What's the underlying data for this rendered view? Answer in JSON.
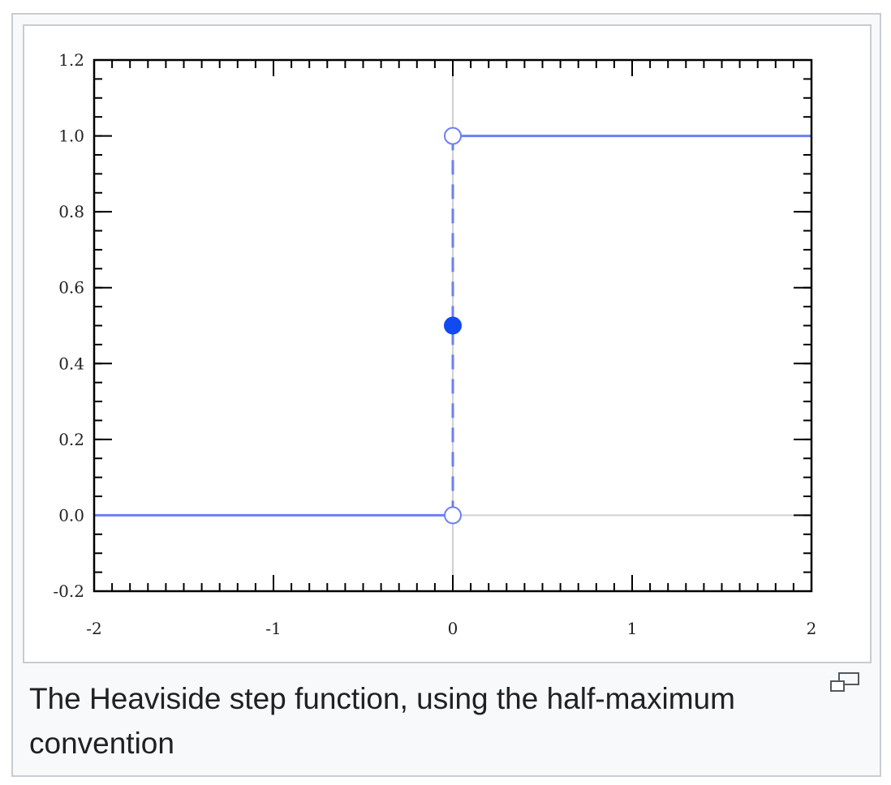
{
  "caption": "The Heaviside step function, using the half-maximum convention",
  "icons": {
    "magnify": "magnify-clip-icon"
  },
  "colors": {
    "line": "#6e7ff0",
    "dot": "#1249f0",
    "axis": "#000000",
    "grid": "#d0d0d0",
    "frame_border": "#c8ccd1",
    "caption_bg": "#f8f9fa"
  },
  "chart_data": {
    "type": "line",
    "title": "",
    "xlabel": "",
    "ylabel": "",
    "xlim": [
      -2,
      2
    ],
    "ylim": [
      -0.2,
      1.2
    ],
    "x_ticks": [
      -2,
      -1,
      0,
      1,
      2
    ],
    "x_tick_labels": [
      "-2",
      "-1",
      "0",
      "1",
      "2"
    ],
    "y_ticks": [
      -0.2,
      0.0,
      0.2,
      0.4,
      0.6,
      0.8,
      1.0,
      1.2
    ],
    "y_tick_labels": [
      "-0.2",
      "0.0",
      "0.2",
      "0.4",
      "0.6",
      "0.8",
      "1.0",
      "1.2"
    ],
    "minor_tick_step": {
      "x": 0.1,
      "y": 0.05
    },
    "reference_lines": {
      "x": [
        0
      ],
      "y": [
        0
      ]
    },
    "series": [
      {
        "style": "solid",
        "x": [
          -2,
          0
        ],
        "y": [
          0,
          0
        ]
      },
      {
        "style": "solid",
        "x": [
          0,
          2
        ],
        "y": [
          1,
          1
        ]
      },
      {
        "style": "dashed",
        "x": [
          0,
          0
        ],
        "y": [
          0,
          1
        ]
      }
    ],
    "points": [
      {
        "x": 0,
        "y": 0,
        "marker": "open"
      },
      {
        "x": 0,
        "y": 1,
        "marker": "open"
      },
      {
        "x": 0,
        "y": 0.5,
        "marker": "filled"
      }
    ]
  }
}
